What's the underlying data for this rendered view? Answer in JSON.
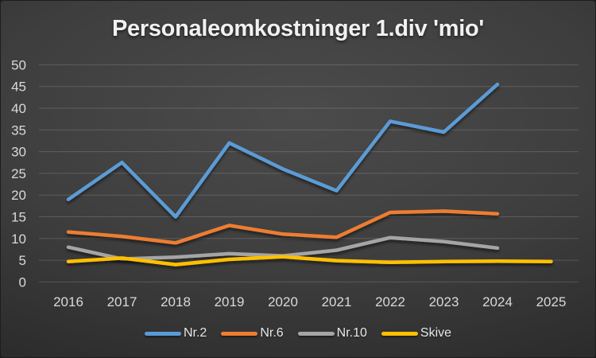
{
  "chart_data": {
    "type": "line",
    "title": "Personaleomkostninger 1.div 'mio'",
    "categories": [
      "2016",
      "2017",
      "2018",
      "2019",
      "2020",
      "2021",
      "2022",
      "2023",
      "2024",
      "2025"
    ],
    "series": [
      {
        "name": "Nr.2",
        "color": "#5B9BD5",
        "values": [
          19,
          27.5,
          15,
          32,
          26,
          21,
          37,
          34.5,
          45.5,
          null
        ]
      },
      {
        "name": "Nr.6",
        "color": "#ED7D31",
        "values": [
          11.5,
          10.5,
          9,
          13,
          11,
          10.3,
          16,
          16.3,
          15.7,
          null
        ]
      },
      {
        "name": "Nr.10",
        "color": "#A5A5A5",
        "values": [
          8,
          5.3,
          5.7,
          6.5,
          6,
          7.3,
          10.2,
          9.3,
          7.8,
          null
        ]
      },
      {
        "name": "Skive",
        "color": "#FFC000",
        "values": [
          4.7,
          5.5,
          4,
          5.2,
          5.8,
          4.9,
          4.5,
          4.7,
          4.8,
          4.7
        ]
      }
    ],
    "ylim": [
      0,
      50
    ],
    "ytick_step": 5,
    "xlabel": "",
    "ylabel": "",
    "grid": true,
    "legend_position": "bottom",
    "colors": {
      "axis_labels": "#d9d9d9",
      "gridline": "rgba(255,255,255,0.16)",
      "title": "#f1f1f1"
    }
  }
}
